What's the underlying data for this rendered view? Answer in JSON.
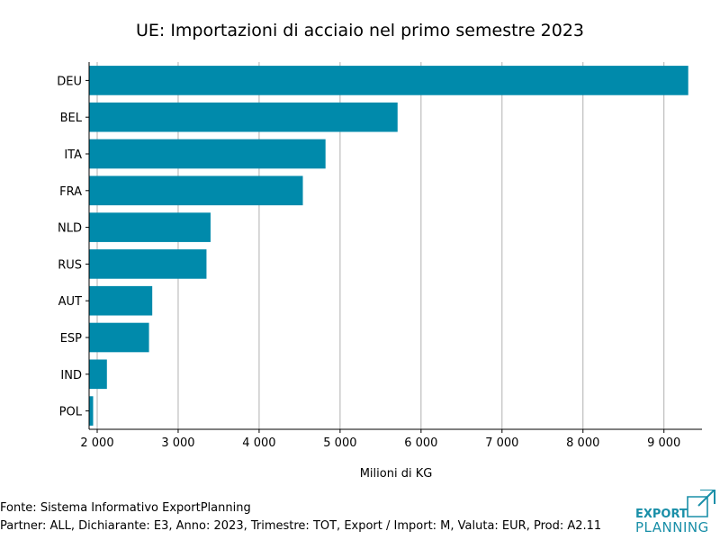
{
  "chart_data": {
    "type": "bar",
    "orientation": "horizontal",
    "title": "UE: Importazioni di acciaio nel primo semestre 2023",
    "xlabel": "Milioni di KG",
    "ylabel": "",
    "categories": [
      "DEU",
      "BEL",
      "ITA",
      "FRA",
      "NLD",
      "RUS",
      "AUT",
      "ESP",
      "IND",
      "POL"
    ],
    "values": [
      9300,
      5710,
      4820,
      4540,
      3400,
      3350,
      2680,
      2640,
      2120,
      1950
    ],
    "xlim": [
      1900,
      9470
    ],
    "xticks": [
      2000,
      3000,
      4000,
      5000,
      6000,
      7000,
      8000,
      9000
    ],
    "xtick_labels": [
      "2 000",
      "3 000",
      "4 000",
      "5 000",
      "6 000",
      "7 000",
      "8 000",
      "9 000"
    ],
    "grid": "vertical",
    "bar_color": "#008aab",
    "grid_color": "#b0b0b0"
  },
  "footer": {
    "source": "Fonte: Sistema Informativo ExportPlanning",
    "params": "Partner: ALL, Dichiarante: E3, Anno: 2023, Trimestre: TOT, Export / Import: M, Valuta: EUR, Prod: A2.11"
  },
  "logo": {
    "line1": "EXPORT",
    "line2": "PLANNING",
    "color": "#1a8fa8"
  }
}
